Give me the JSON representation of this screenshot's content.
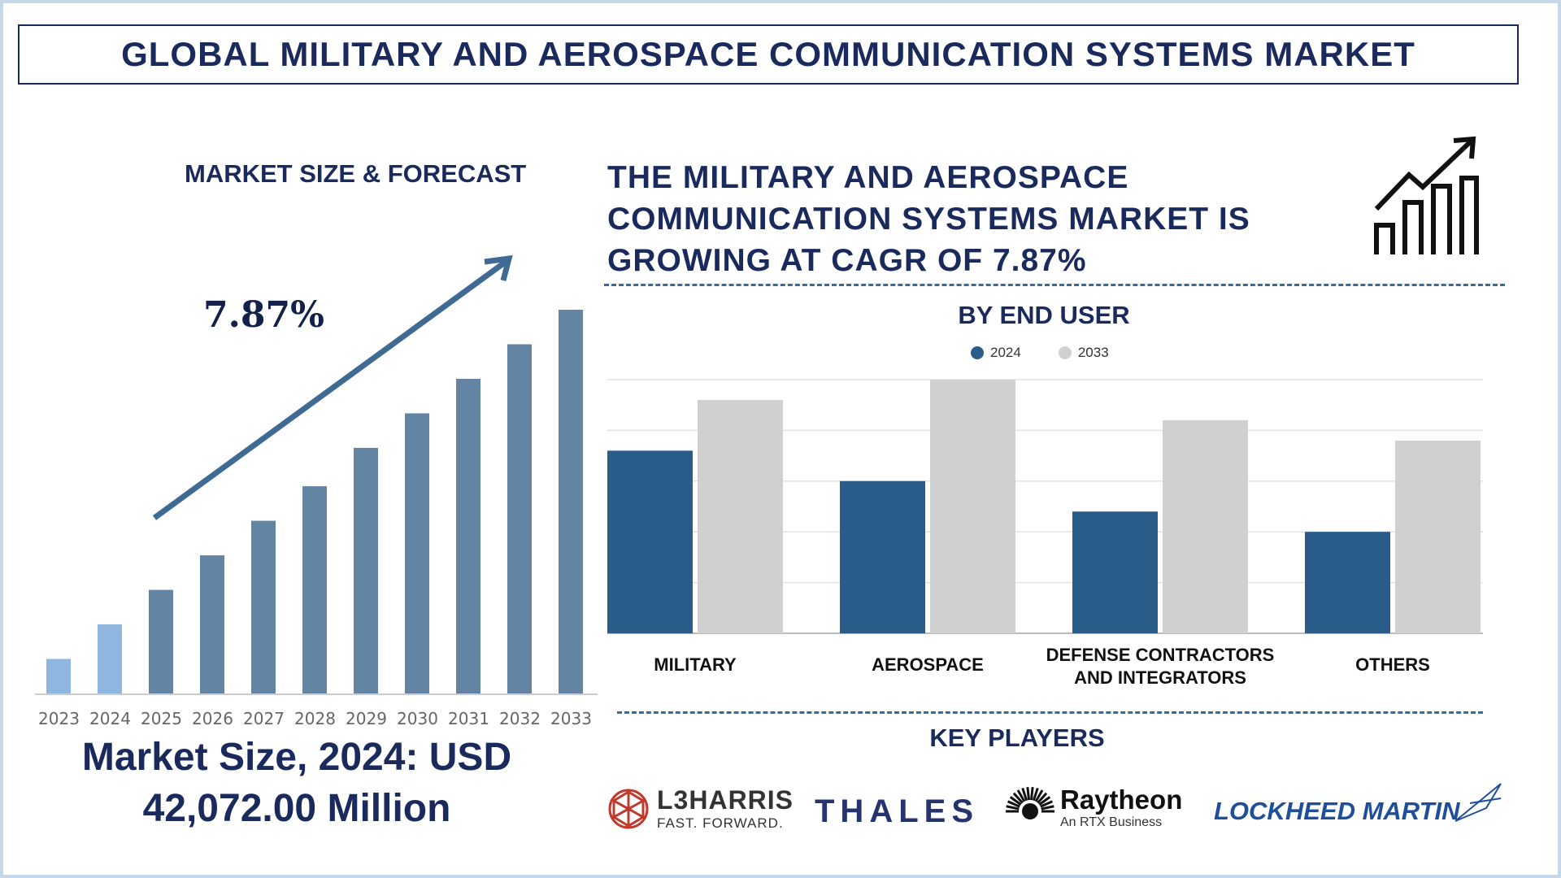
{
  "title": "GLOBAL MILITARY AND AEROSPACE COMMUNICATION SYSTEMS MARKET",
  "left_panel": {
    "heading": "MARKET SIZE & FORECAST",
    "cagr": "7.87%",
    "market_size_line1": "Market Size, 2024: USD",
    "market_size_line2": "42,072.00 Million"
  },
  "headline": {
    "line1": "THE MILITARY AND AEROSPACE",
    "line2": "COMMUNICATION SYSTEMS MARKET IS",
    "line3": "GROWING AT CAGR OF 7.87%",
    "icon": "growth-chart-icon"
  },
  "end_user": {
    "heading": "BY END USER"
  },
  "key_players": {
    "heading": "KEY PLAYERS",
    "players": [
      {
        "name": "L3HARRIS",
        "tagline": "FAST. FORWARD."
      },
      {
        "name": "THALES"
      },
      {
        "name": "Raytheon",
        "tagline": "An RTX Business"
      },
      {
        "name": "LOCKHEED MARTIN"
      }
    ]
  },
  "chart_data": [
    {
      "type": "bar",
      "categories": [
        "2023",
        "2024",
        "2025",
        "2026",
        "2027",
        "2028",
        "2029",
        "2030",
        "2031",
        "2032",
        "2033"
      ],
      "values": [
        9,
        18,
        27,
        36,
        45,
        54,
        64,
        73,
        82,
        91,
        100
      ],
      "highlight_colors": [
        "#8fb6de",
        "#8fb6de",
        "#6484a4",
        "#6484a4",
        "#6484a4",
        "#6484a4",
        "#6484a4",
        "#6484a4",
        "#6484a4",
        "#6484a4",
        "#6484a4"
      ],
      "grid": false
    },
    {
      "type": "bar",
      "categories": [
        "MILITARY",
        "AEROSPACE",
        "DEFENSE CONTRACTORS AND INTEGRATORS",
        "OTHERS"
      ],
      "category_lines": [
        [
          "MILITARY"
        ],
        [
          "AEROSPACE"
        ],
        [
          "DEFENSE CONTRACTORS",
          "AND INTEGRATORS"
        ],
        [
          "OTHERS"
        ]
      ],
      "series": [
        {
          "name": "2024",
          "color": "#2a5c8a",
          "values": [
            3.6,
            3.0,
            2.4,
            2.0
          ]
        },
        {
          "name": "2033",
          "color": "#d0d0d0",
          "values": [
            4.6,
            5.0,
            4.2,
            3.8
          ]
        }
      ],
      "ylim": [
        0,
        5
      ],
      "grid": true,
      "legend": "top-center"
    }
  ]
}
